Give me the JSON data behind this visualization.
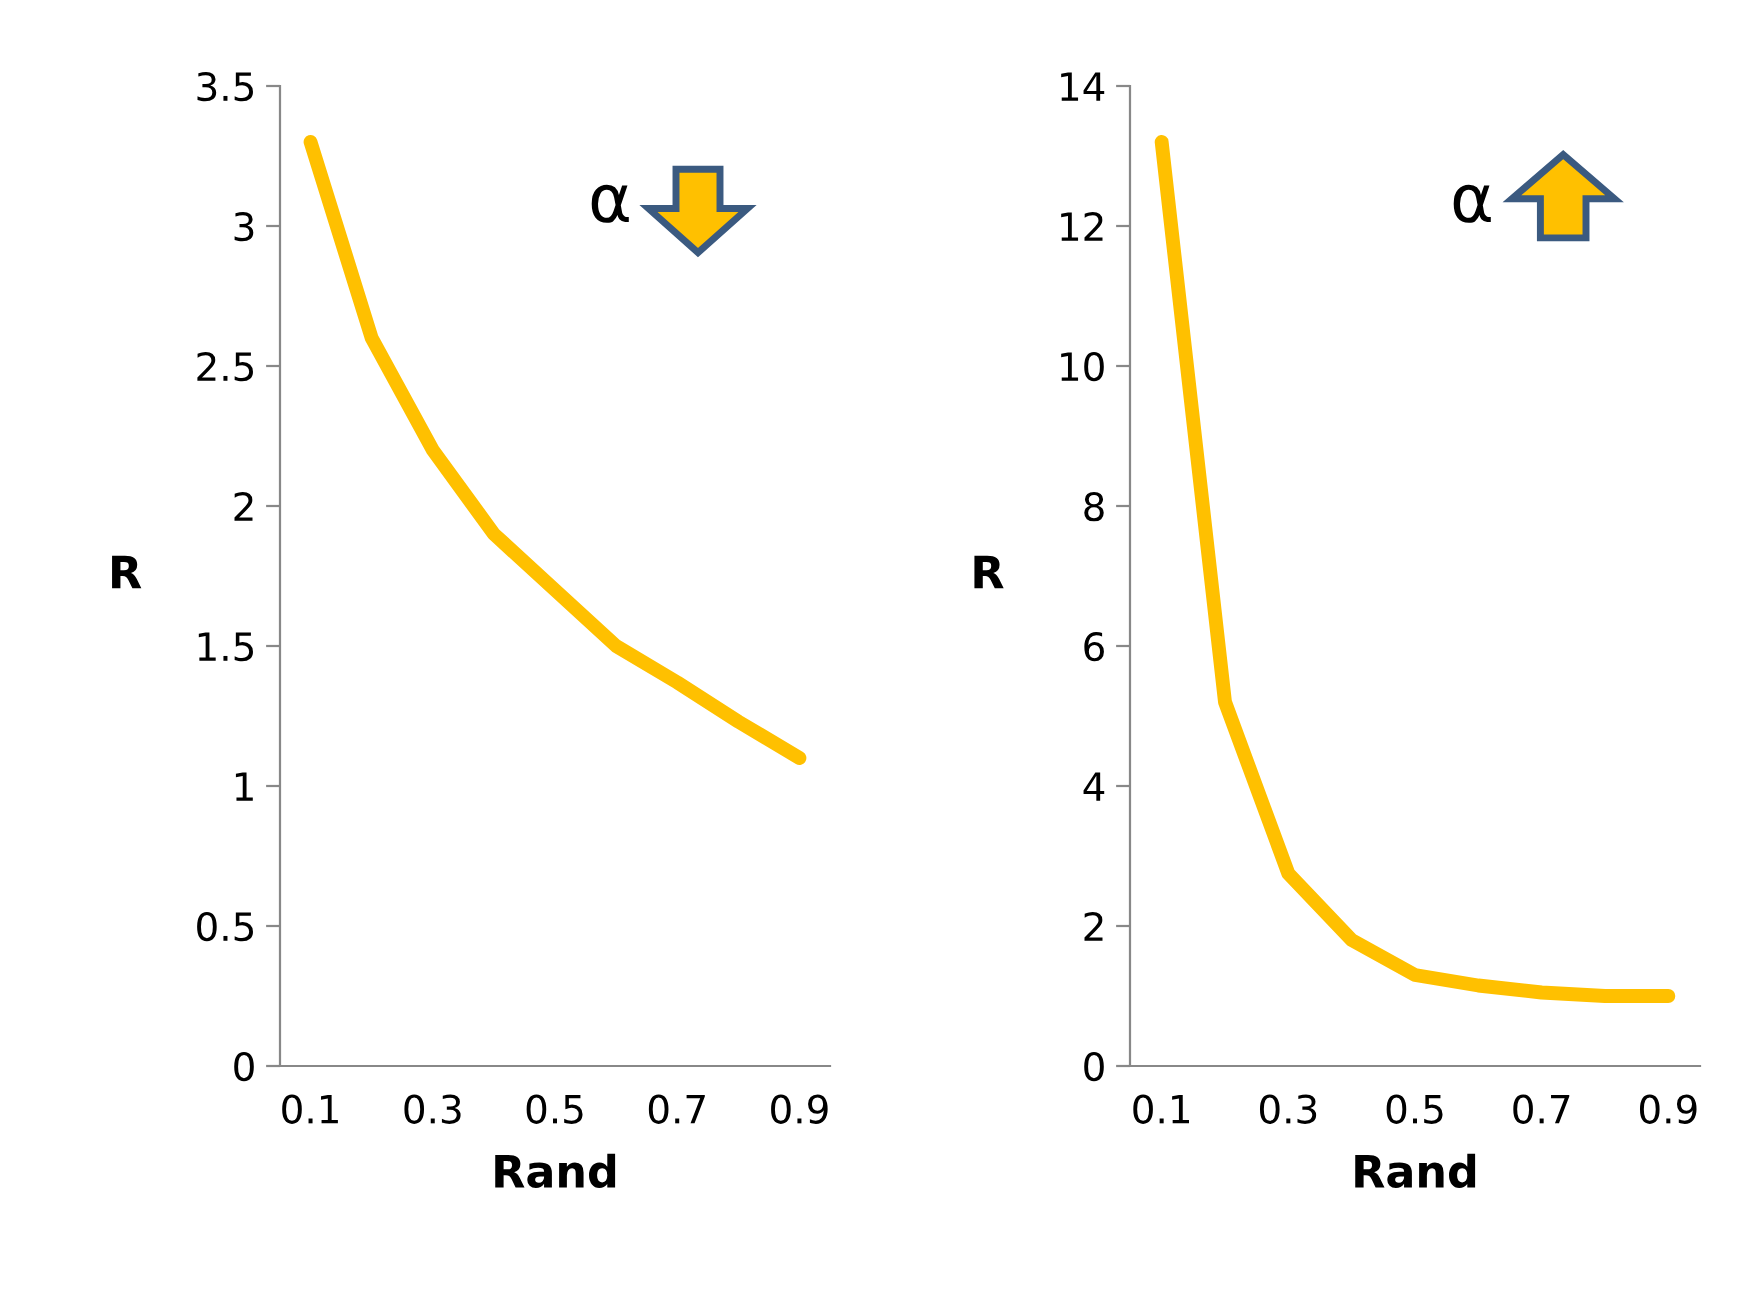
{
  "chart_data": [
    {
      "type": "line",
      "xlabel": "Rand",
      "ylabel": "R",
      "categories": [
        "0.1",
        null,
        "0.3",
        null,
        "0.5",
        null,
        "0.7",
        null,
        "0.9"
      ],
      "series": [
        {
          "color": "#ffc000",
          "values": [
            3.3,
            2.6,
            2.2,
            1.9,
            1.7,
            1.5,
            1.37,
            1.23,
            1.1
          ]
        }
      ],
      "ylim": [
        0,
        3.5
      ],
      "yticks": [
        0,
        0.5,
        1,
        1.5,
        2,
        2.5,
        3,
        3.5
      ],
      "grid": false,
      "legend": false,
      "marker": "none",
      "line_style": "solid",
      "annotations": [
        "α"
      ]
    },
    {
      "type": "line",
      "xlabel": "Rand",
      "ylabel": "R",
      "categories": [
        "0.1",
        null,
        "0.3",
        null,
        "0.5",
        null,
        "0.7",
        null,
        "0.9"
      ],
      "series": [
        {
          "color": "#ffc000",
          "values": [
            13.2,
            5.2,
            2.75,
            1.8,
            1.3,
            1.15,
            1.05,
            1.0,
            1.0
          ]
        }
      ],
      "ylim": [
        0,
        14
      ],
      "yticks": [
        0,
        2,
        4,
        6,
        8,
        10,
        12,
        14
      ],
      "grid": false,
      "legend": false,
      "marker": "none",
      "line_style": "solid",
      "annotations": [
        "α"
      ]
    }
  ]
}
